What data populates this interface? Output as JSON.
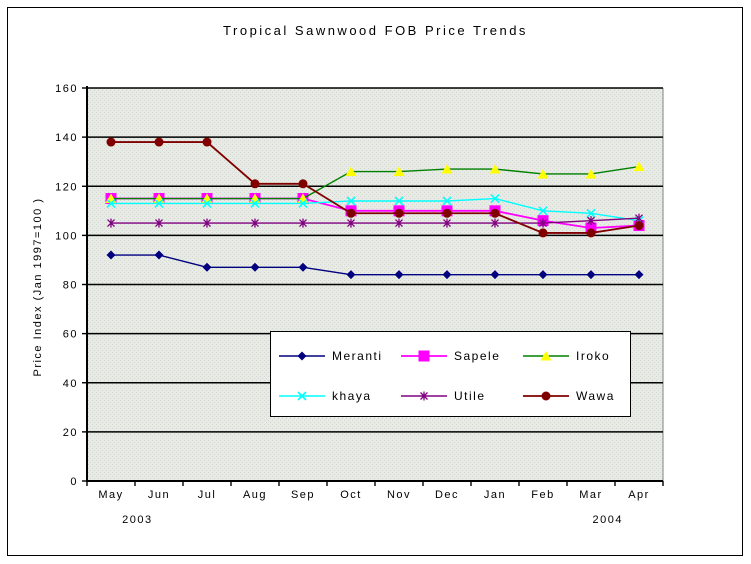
{
  "chart_data": {
    "type": "line",
    "title": "Tropical Sawnwood FOB Price Trends",
    "ylabel": "Price Index (Jan 1997=100 )",
    "xlabel": "",
    "ylim": [
      0,
      160
    ],
    "ytick_step": 20,
    "grid": true,
    "legend_position": "inside-bottom-center",
    "plot_bg": "#E8EBE5",
    "plot_dot": "#D2D7CF",
    "gridline_color": "#000000",
    "axis_color": "#000000",
    "plot_border_right_color": "#808080",
    "categories": [
      "May",
      "Jun",
      "Jul",
      "Aug",
      "Sep",
      "Oct",
      "Nov",
      "Dec",
      "Jan",
      "Feb",
      "Mar",
      "Apr"
    ],
    "year_labels": [
      {
        "text": "2003",
        "position": 0.55
      },
      {
        "text": "2004",
        "position": 10.35
      }
    ],
    "series": [
      {
        "name": "Meranti",
        "color": "#000080",
        "marker": "diamond",
        "marker_color": "#000080",
        "values": [
          92,
          92,
          87,
          87,
          87,
          84,
          84,
          84,
          84,
          84,
          84,
          84
        ]
      },
      {
        "name": "Sapele",
        "color": "#FF00FF",
        "marker": "square",
        "marker_color": "#FF00FF",
        "values": [
          115,
          115,
          115,
          115,
          115,
          110,
          110,
          110,
          110,
          106,
          103,
          104
        ]
      },
      {
        "name": "Iroko",
        "color": "#008000",
        "marker": "triangle",
        "marker_color": "#FFFF00",
        "values": [
          115,
          115,
          115,
          115,
          115,
          126,
          126,
          127,
          127,
          125,
          125,
          128
        ]
      },
      {
        "name": "khaya",
        "color": "#00FFFF",
        "marker": "x",
        "marker_color": "#00FFFF",
        "values": [
          113,
          113,
          113,
          113,
          113,
          114,
          114,
          114,
          115,
          110,
          109,
          106
        ]
      },
      {
        "name": "Utile",
        "color": "#800080",
        "marker": "star",
        "marker_color": "#800080",
        "values": [
          105,
          105,
          105,
          105,
          105,
          105,
          105,
          105,
          105,
          105,
          106,
          107
        ]
      },
      {
        "name": "Wawa",
        "color": "#800000",
        "marker": "circle",
        "marker_color": "#800000",
        "values": [
          138,
          138,
          138,
          121,
          121,
          109,
          109,
          109,
          109,
          101,
          101,
          104
        ]
      }
    ]
  }
}
